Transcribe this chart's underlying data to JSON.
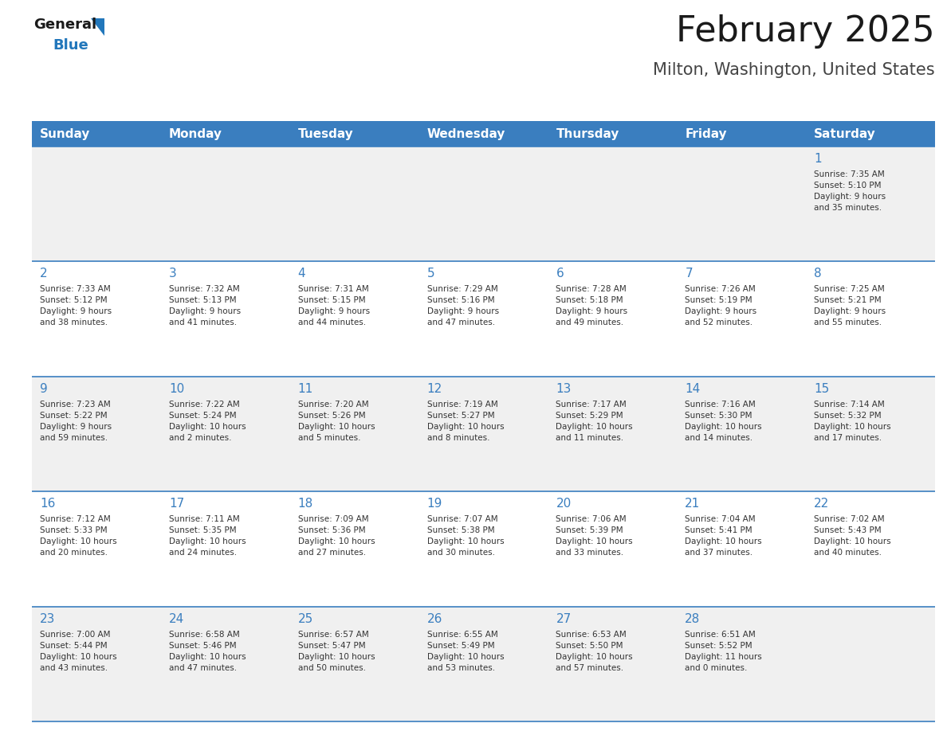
{
  "title": "February 2025",
  "subtitle": "Milton, Washington, United States",
  "header_bg": "#3a7ebf",
  "header_text_color": "#ffffff",
  "cell_bg_odd": "#f0f0f0",
  "cell_bg_even": "#ffffff",
  "day_number_color": "#3a7ebf",
  "text_color": "#333333",
  "line_color": "#3a7ebf",
  "days_of_week": [
    "Sunday",
    "Monday",
    "Tuesday",
    "Wednesday",
    "Thursday",
    "Friday",
    "Saturday"
  ],
  "calendar_data": [
    [
      {
        "day": null,
        "info": null
      },
      {
        "day": null,
        "info": null
      },
      {
        "day": null,
        "info": null
      },
      {
        "day": null,
        "info": null
      },
      {
        "day": null,
        "info": null
      },
      {
        "day": null,
        "info": null
      },
      {
        "day": 1,
        "info": "Sunrise: 7:35 AM\nSunset: 5:10 PM\nDaylight: 9 hours\nand 35 minutes."
      }
    ],
    [
      {
        "day": 2,
        "info": "Sunrise: 7:33 AM\nSunset: 5:12 PM\nDaylight: 9 hours\nand 38 minutes."
      },
      {
        "day": 3,
        "info": "Sunrise: 7:32 AM\nSunset: 5:13 PM\nDaylight: 9 hours\nand 41 minutes."
      },
      {
        "day": 4,
        "info": "Sunrise: 7:31 AM\nSunset: 5:15 PM\nDaylight: 9 hours\nand 44 minutes."
      },
      {
        "day": 5,
        "info": "Sunrise: 7:29 AM\nSunset: 5:16 PM\nDaylight: 9 hours\nand 47 minutes."
      },
      {
        "day": 6,
        "info": "Sunrise: 7:28 AM\nSunset: 5:18 PM\nDaylight: 9 hours\nand 49 minutes."
      },
      {
        "day": 7,
        "info": "Sunrise: 7:26 AM\nSunset: 5:19 PM\nDaylight: 9 hours\nand 52 minutes."
      },
      {
        "day": 8,
        "info": "Sunrise: 7:25 AM\nSunset: 5:21 PM\nDaylight: 9 hours\nand 55 minutes."
      }
    ],
    [
      {
        "day": 9,
        "info": "Sunrise: 7:23 AM\nSunset: 5:22 PM\nDaylight: 9 hours\nand 59 minutes."
      },
      {
        "day": 10,
        "info": "Sunrise: 7:22 AM\nSunset: 5:24 PM\nDaylight: 10 hours\nand 2 minutes."
      },
      {
        "day": 11,
        "info": "Sunrise: 7:20 AM\nSunset: 5:26 PM\nDaylight: 10 hours\nand 5 minutes."
      },
      {
        "day": 12,
        "info": "Sunrise: 7:19 AM\nSunset: 5:27 PM\nDaylight: 10 hours\nand 8 minutes."
      },
      {
        "day": 13,
        "info": "Sunrise: 7:17 AM\nSunset: 5:29 PM\nDaylight: 10 hours\nand 11 minutes."
      },
      {
        "day": 14,
        "info": "Sunrise: 7:16 AM\nSunset: 5:30 PM\nDaylight: 10 hours\nand 14 minutes."
      },
      {
        "day": 15,
        "info": "Sunrise: 7:14 AM\nSunset: 5:32 PM\nDaylight: 10 hours\nand 17 minutes."
      }
    ],
    [
      {
        "day": 16,
        "info": "Sunrise: 7:12 AM\nSunset: 5:33 PM\nDaylight: 10 hours\nand 20 minutes."
      },
      {
        "day": 17,
        "info": "Sunrise: 7:11 AM\nSunset: 5:35 PM\nDaylight: 10 hours\nand 24 minutes."
      },
      {
        "day": 18,
        "info": "Sunrise: 7:09 AM\nSunset: 5:36 PM\nDaylight: 10 hours\nand 27 minutes."
      },
      {
        "day": 19,
        "info": "Sunrise: 7:07 AM\nSunset: 5:38 PM\nDaylight: 10 hours\nand 30 minutes."
      },
      {
        "day": 20,
        "info": "Sunrise: 7:06 AM\nSunset: 5:39 PM\nDaylight: 10 hours\nand 33 minutes."
      },
      {
        "day": 21,
        "info": "Sunrise: 7:04 AM\nSunset: 5:41 PM\nDaylight: 10 hours\nand 37 minutes."
      },
      {
        "day": 22,
        "info": "Sunrise: 7:02 AM\nSunset: 5:43 PM\nDaylight: 10 hours\nand 40 minutes."
      }
    ],
    [
      {
        "day": 23,
        "info": "Sunrise: 7:00 AM\nSunset: 5:44 PM\nDaylight: 10 hours\nand 43 minutes."
      },
      {
        "day": 24,
        "info": "Sunrise: 6:58 AM\nSunset: 5:46 PM\nDaylight: 10 hours\nand 47 minutes."
      },
      {
        "day": 25,
        "info": "Sunrise: 6:57 AM\nSunset: 5:47 PM\nDaylight: 10 hours\nand 50 minutes."
      },
      {
        "day": 26,
        "info": "Sunrise: 6:55 AM\nSunset: 5:49 PM\nDaylight: 10 hours\nand 53 minutes."
      },
      {
        "day": 27,
        "info": "Sunrise: 6:53 AM\nSunset: 5:50 PM\nDaylight: 10 hours\nand 57 minutes."
      },
      {
        "day": 28,
        "info": "Sunrise: 6:51 AM\nSunset: 5:52 PM\nDaylight: 11 hours\nand 0 minutes."
      },
      {
        "day": null,
        "info": null
      }
    ]
  ],
  "logo_general_color": "#1a1a1a",
  "logo_blue_color": "#2277bb",
  "logo_triangle_color": "#2277bb",
  "title_fontsize": 32,
  "subtitle_fontsize": 15,
  "header_fontsize": 11,
  "day_num_fontsize": 11,
  "cell_text_fontsize": 7.5
}
